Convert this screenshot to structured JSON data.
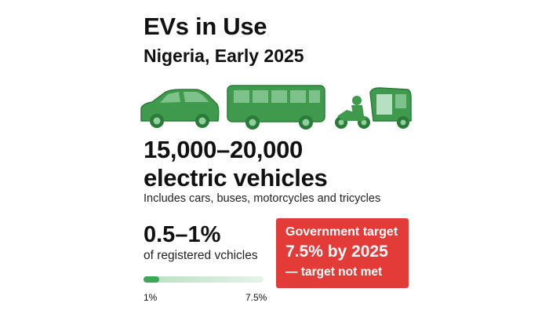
{
  "header": {
    "title": "EVs in Use",
    "subtitle": "Nigeria, Early 2025"
  },
  "icons": [
    "car-icon",
    "bus-icon",
    "motorcycle-icon",
    "tricycle-icon"
  ],
  "stats": {
    "count_line1": "15,000–20,000",
    "count_line2": "electric vehicles",
    "includes": "Includes cars, buses, motorcycles and tricycles",
    "share": "0.5–1%",
    "share_label": "of registered vchicles"
  },
  "progress": {
    "value_percent": 1,
    "max_percent": 7.5,
    "min_label": "1%",
    "max_label": "7.5%"
  },
  "target": {
    "line1": "Government target",
    "line2": "7.5% by 2025",
    "line3": "— target not met"
  },
  "colors": {
    "accent_green": "#3aa856",
    "vehicle_green": "#3f9a4e",
    "alert_red": "#e23b38"
  }
}
